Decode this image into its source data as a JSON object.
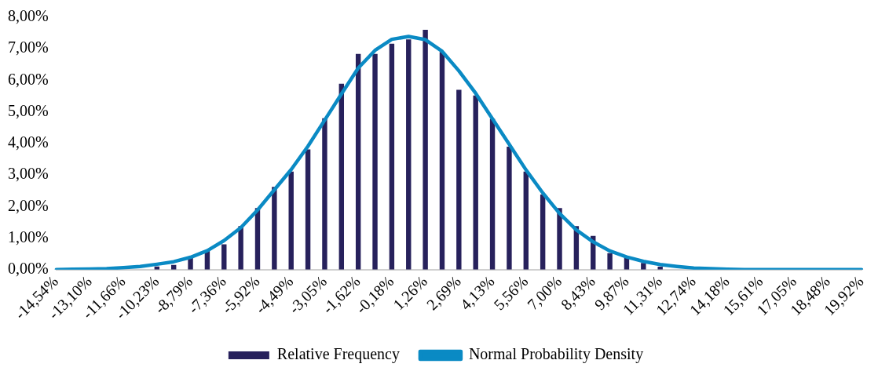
{
  "chart_data": {
    "type": "bar",
    "categories": [
      "-14,54%",
      null,
      "-13,10%",
      null,
      "-11,66%",
      null,
      "-10,23%",
      null,
      "-8,79%",
      null,
      "-7,36%",
      null,
      "-5,92%",
      null,
      "-4,49%",
      null,
      "-3,05%",
      null,
      "-1,62%",
      null,
      "-0,18%",
      null,
      "1,26%",
      null,
      "2,69%",
      null,
      "4,13%",
      null,
      "5,56%",
      null,
      "7,00%",
      null,
      "8,43%",
      null,
      "9,87%",
      null,
      "11,31%",
      null,
      "12,74%",
      null,
      "14,18%",
      null,
      "15,61%",
      null,
      "17,05%",
      null,
      "18,48%",
      null,
      "19,92%"
    ],
    "series": [
      {
        "name": "Relative Frequency",
        "color": "#27215c",
        "values": [
          0,
          0,
          0,
          0,
          0,
          0,
          0.1,
          0.15,
          0.39,
          0.6,
          0.8,
          1.38,
          1.95,
          2.62,
          3.11,
          3.81,
          4.8,
          5.89,
          6.84,
          6.84,
          7.16,
          7.3,
          7.6,
          6.9,
          5.7,
          5.52,
          4.78,
          3.9,
          3.11,
          2.38,
          1.95,
          1.38,
          1.07,
          0.52,
          0.37,
          0.21,
          0.09,
          0,
          0,
          0,
          0,
          0,
          0,
          0,
          0,
          0,
          0,
          0,
          0
        ]
      },
      {
        "name": "Normal Probability Density",
        "type": "line",
        "color": "#0a8ac4",
        "values": [
          0,
          0.01,
          0.02,
          0.03,
          0.06,
          0.1,
          0.17,
          0.25,
          0.39,
          0.6,
          0.92,
          1.33,
          1.89,
          2.53,
          3.17,
          3.91,
          4.74,
          5.57,
          6.39,
          6.95,
          7.3,
          7.39,
          7.29,
          6.92,
          6.3,
          5.59,
          4.78,
          3.97,
          3.16,
          2.43,
          1.78,
          1.26,
          0.88,
          0.59,
          0.4,
          0.26,
          0.16,
          0.1,
          0.05,
          0.03,
          0.01,
          0,
          0,
          0,
          0,
          0,
          0,
          0,
          0
        ]
      }
    ],
    "ylim": [
      0,
      8
    ],
    "yticks": [
      {
        "value": 0,
        "label": "0,00%"
      },
      {
        "value": 1,
        "label": "1,00%"
      },
      {
        "value": 2,
        "label": "2,00%"
      },
      {
        "value": 3,
        "label": "3,00%"
      },
      {
        "value": 4,
        "label": "4,00%"
      },
      {
        "value": 5,
        "label": "5,00%"
      },
      {
        "value": 6,
        "label": "6,00%"
      },
      {
        "value": 7,
        "label": "7,00%"
      },
      {
        "value": 8,
        "label": "8,00%"
      }
    ],
    "grid": false,
    "legend": "bottom",
    "marker": "none"
  }
}
